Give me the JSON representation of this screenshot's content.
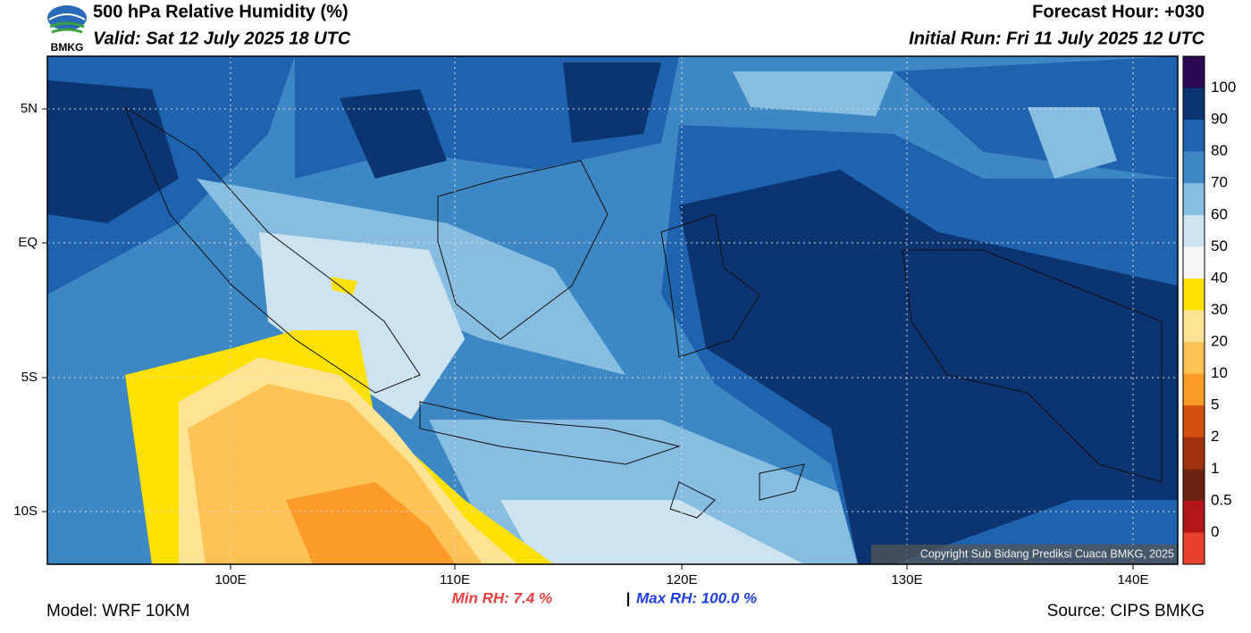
{
  "header": {
    "logo": "BMKG",
    "title": "500 hPa Relative Humidity (%)",
    "valid": "Valid: Sat 12 July 2025 18 UTC",
    "forecast_hour": "Forecast Hour: +030",
    "initial_run": "Initial Run: Fri 11 July 2025 12 UTC"
  },
  "axes": {
    "y_labels": [
      "5N",
      "EQ",
      "5S",
      "10S"
    ],
    "x_labels": [
      "100E",
      "110E",
      "120E",
      "130E",
      "140E"
    ]
  },
  "colorbar": {
    "colors": [
      "#2c0a52",
      "#0b3470",
      "#1f62ae",
      "#3d87c4",
      "#86bde0",
      "#cde3ef",
      "#f6f6f6",
      "#ffe100",
      "#ffe394",
      "#ffc355",
      "#fc9a2a",
      "#d4500f",
      "#a2320f",
      "#6b2410",
      "#b3161a",
      "#e8402f"
    ],
    "labels": [
      "100",
      "90",
      "80",
      "70",
      "60",
      "50",
      "40",
      "30",
      "20",
      "10",
      "5",
      "2",
      "1",
      "0.5",
      "0"
    ]
  },
  "copyright": "Copyright Sub Bidang Prediksi Cuaca BMKG, 2025",
  "stats": {
    "min": "Min RH:   7.4 %",
    "separator": "|",
    "max": "Max RH: 100.0 %"
  },
  "footer": {
    "model": "Model: WRF 10KM",
    "source": "Source: CIPS BMKG"
  }
}
